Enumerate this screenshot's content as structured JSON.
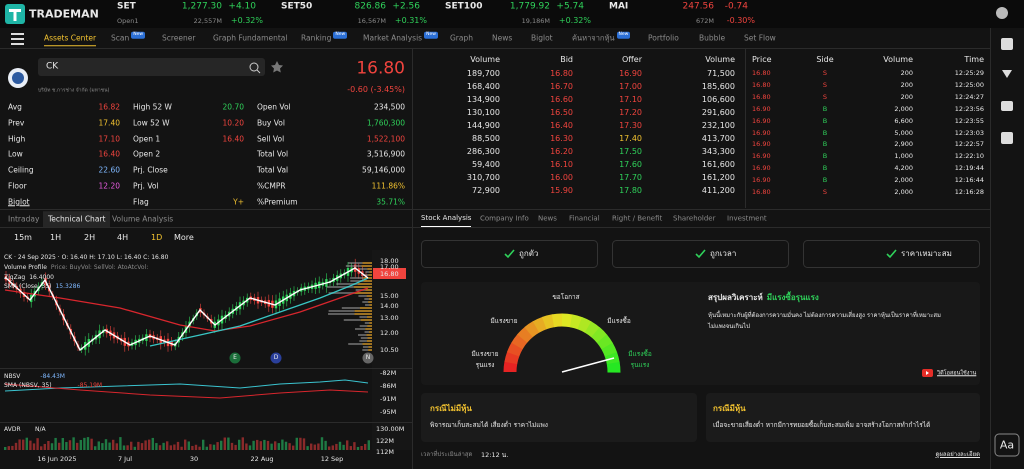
{
  "header": {
    "logo": "TRADEMAN",
    "session": "Open1",
    "indices": [
      {
        "name": "SET",
        "value": "1,277.30",
        "change": "+4.10",
        "volume": "22,557M",
        "percent": "+0.32%"
      },
      {
        "name": "SET50",
        "value": "826.86",
        "change": "+2.56",
        "volume": "16,567M",
        "percent": "+0.31%"
      },
      {
        "name": "SET100",
        "value": "1,779.92",
        "change": "+5.74",
        "volume": "19,186M",
        "percent": "+0.32%"
      },
      {
        "name": "MAI",
        "value": "247.56",
        "change": "-0.74",
        "volume": "672M",
        "percent": "-0.30%"
      }
    ]
  },
  "nav": {
    "badge": "New",
    "items": [
      {
        "label": "Assets Center"
      },
      {
        "label": "Scan",
        "new": true
      },
      {
        "label": "Screener"
      },
      {
        "label": "Graph Fundamental"
      },
      {
        "label": "Ranking",
        "new": true
      },
      {
        "label": "Market Analysis",
        "new": true
      },
      {
        "label": "Graph"
      },
      {
        "label": "News"
      },
      {
        "label": "Biglot"
      },
      {
        "label": "ค้นหาจากหุ้น",
        "new": true
      },
      {
        "label": "Portfolio"
      },
      {
        "label": "Bubble"
      },
      {
        "label": "Set Flow"
      }
    ]
  },
  "quote": {
    "symbol": "CK",
    "company": "บริษัท ช.การช่าง จำกัด (มหาชน)",
    "price": "16.80",
    "change": "-0.60 (-3.45%)",
    "stats": [
      [
        {
          "label": "Avg",
          "value": "16.82"
        },
        {
          "label": "High 52 W",
          "value": "20.70"
        },
        {
          "label": "Open Vol",
          "value": "234,500"
        }
      ],
      [
        {
          "label": "Prev",
          "value": "17.40"
        },
        {
          "label": "Low 52 W",
          "value": "10.20"
        },
        {
          "label": "Buy Vol",
          "value": "1,760,300"
        }
      ],
      [
        {
          "label": "High",
          "value": "17.10"
        },
        {
          "label": "Open 1",
          "value": "16.40"
        },
        {
          "label": "Sell Vol",
          "value": "1,522,100"
        }
      ],
      [
        {
          "label": "Low",
          "value": "16.40"
        },
        {
          "label": "Open 2"
        },
        {
          "label": "Total Vol",
          "value": "3,516,900"
        }
      ],
      [
        {
          "label": "Ceiling",
          "value": "22.60"
        },
        {
          "label": "Prj. Close"
        },
        {
          "label": "Total Val",
          "value": "59,146,000"
        }
      ],
      [
        {
          "label": "Floor",
          "value": "12.20"
        },
        {
          "label": "Prj. Vol"
        },
        {
          "label": "%CMPR",
          "value": "111.86%"
        }
      ],
      [
        {
          "label": "Biglot"
        },
        {
          "label": "Flag",
          "value": "Y+"
        },
        {
          "label": "%Premium",
          "value": "35.71%"
        }
      ]
    ]
  },
  "orderbook": {
    "headers": [
      "Volume",
      "Bid",
      "Offer",
      "Volume"
    ],
    "rows": [
      [
        "189,700",
        "16.80",
        "16.90",
        "71,500"
      ],
      [
        "168,400",
        "16.70",
        "17.00",
        "185,600"
      ],
      [
        "134,900",
        "16.60",
        "17.10",
        "106,600"
      ],
      [
        "130,100",
        "16.50",
        "17.20",
        "291,600"
      ],
      [
        "144,900",
        "16.40",
        "17.30",
        "232,100"
      ],
      [
        "88,500",
        "16.30",
        "17.40",
        "413,700"
      ],
      [
        "286,300",
        "16.20",
        "17.50",
        "343,300"
      ],
      [
        "59,400",
        "16.10",
        "17.60",
        "161,600"
      ],
      [
        "310,700",
        "16.00",
        "17.70",
        "161,200"
      ],
      [
        "72,900",
        "15.90",
        "17.80",
        "411,200"
      ]
    ]
  },
  "trades": {
    "headers": [
      "Price",
      "Side",
      "Volume",
      "Time"
    ],
    "rows": [
      [
        "16.80",
        "S",
        "200",
        "12:25:29"
      ],
      [
        "16.80",
        "S",
        "200",
        "12:25:00"
      ],
      [
        "16.80",
        "S",
        "200",
        "12:24:27"
      ],
      [
        "16.90",
        "B",
        "2,000",
        "12:23:56"
      ],
      [
        "16.90",
        "B",
        "6,600",
        "12:23:55"
      ],
      [
        "16.90",
        "B",
        "5,000",
        "12:23:03"
      ],
      [
        "16.90",
        "B",
        "2,900",
        "12:22:57"
      ],
      [
        "16.90",
        "B",
        "1,000",
        "12:22:10"
      ],
      [
        "16.90",
        "B",
        "4,200",
        "12:19:44"
      ],
      [
        "16.90",
        "B",
        "2,000",
        "12:16:44"
      ],
      [
        "16.80",
        "S",
        "2,000",
        "12:16:28"
      ]
    ]
  },
  "chart": {
    "tabs": [
      "Intraday",
      "Technical Chart",
      "Volume Analysis"
    ],
    "intervals": [
      "15m",
      "1H",
      "2H",
      "4H",
      "1D"
    ],
    "more": "More",
    "ohlc": "CK · 24 Sep 2025 · O: 16.40  H: 17.10  L: 16.40  C: 16.80",
    "legend": [
      {
        "label": "Volume Profile",
        "detail": "Price:  BuyVol:  SellVol:  AtoAtcVol:"
      },
      {
        "label": "ZigZag",
        "detail": "16.4000"
      },
      {
        "label": "SMA (Close, 35)",
        "detail": "15.3286"
      }
    ],
    "price_axis": [
      "18.00",
      "17.00",
      "16.80",
      "15.00",
      "14.00",
      "13.00",
      "12.00",
      "10.50"
    ],
    "markers": [
      "E",
      "D",
      "N"
    ],
    "nbsv": [
      {
        "label": "NBSV",
        "detail": "-84.43M"
      },
      {
        "label": "SMA (NBSV, 35)",
        "detail": "-85.19M"
      }
    ],
    "nbsv_axis": [
      "-82M",
      "-86M",
      "-91M",
      "-95M"
    ],
    "avdr": {
      "label": "AVDR",
      "detail": "N/A"
    },
    "avdr_axis": [
      "130.00M",
      "122M",
      "112M"
    ],
    "dates": [
      "16 Jun 2025",
      "7 Jul",
      "30",
      "22 Aug",
      "12 Sep"
    ]
  },
  "analysis": {
    "tabs": [
      "Stock Analysis",
      "Company Info",
      "News",
      "Financial",
      "Right / Benefit",
      "Shareholder",
      "Investment"
    ],
    "checks": [
      "ถูกตัว",
      "ถูกเวลา",
      "ราคาเหมาะสม"
    ],
    "gauge": {
      "top": "ขอโอกาส",
      "left": "มีแรงขาย",
      "right": "มีแรงซื้อ",
      "far_left": [
        "มีแรงขาย",
        "รุนแรง"
      ],
      "far_right": [
        "มีแรงซื้อ",
        "รุนแรง"
      ]
    },
    "summary_title": "สรุปผลวิเคราะห์",
    "summary_result": "มีแรงซื้อรุนแรง",
    "summary_text": [
      "หุ้นนี้เหมาะกับผู้ที่ต้องการความมั่นคง ไม่ต้องการความเสี่ยงสูง ราคาหุ้นเป็นราคาที่เหมาะสม",
      "ไม่แพงจนเกินไป"
    ],
    "video": "วิดีโอสอนใช้งาน",
    "cards": [
      {
        "title": "กรณีไม่มีหุ้น",
        "text": "พิจารณาเก็บสะสมได้ เสี่ยงต่ำ ราคาไม่แพง"
      },
      {
        "title": "กรณีมีหุ้น",
        "text": "เมื่อจะขายเสี่ยงต่ำ หากมีการทยอยซื้อเก็บสะสมเพิ่ม อาจสร้างโอกาสทำกำไรได้"
      }
    ],
    "updated_label": "เวลาที่ประเมินล่าสุด",
    "updated_time": "12:12 น.",
    "detail_link": "ดูผลอย่างละเอียด"
  },
  "sidebar": {
    "font": "Aa"
  }
}
